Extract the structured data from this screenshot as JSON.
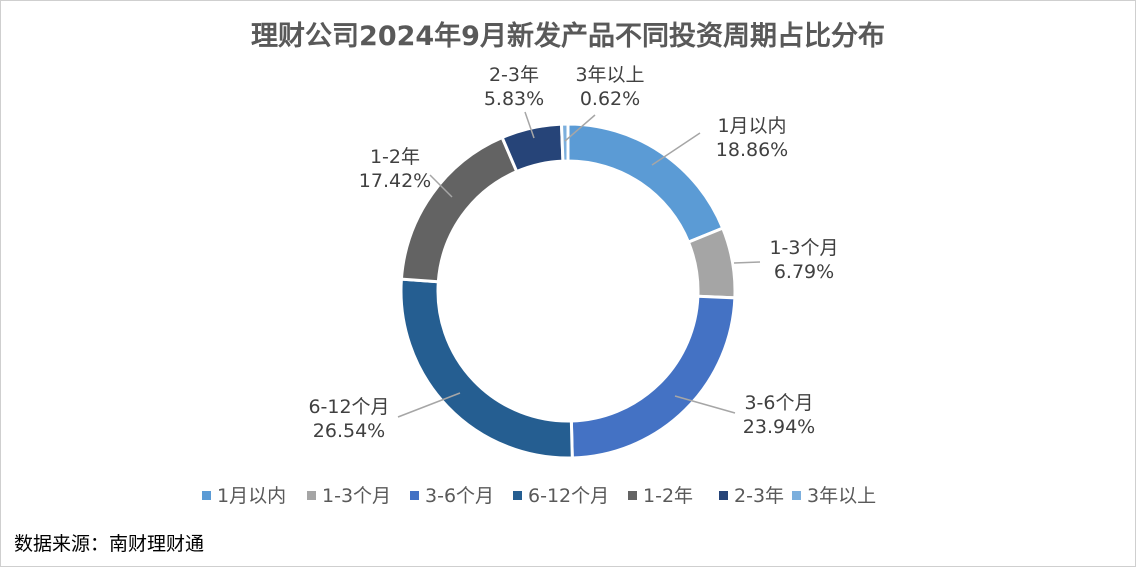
{
  "chart_data": {
    "type": "pie",
    "variant": "donut",
    "title": "理财公司2024年9月新发产品不同投资周期占比分布",
    "categories": [
      "1月以内",
      "1-3个月",
      "3-6个月",
      "6-12个月",
      "1-2年",
      "2-3年",
      "3年以上"
    ],
    "values": [
      18.86,
      6.79,
      23.94,
      26.54,
      17.42,
      5.83,
      0.62
    ],
    "value_labels": [
      "18.86%",
      "6.79%",
      "23.94%",
      "26.54%",
      "17.42%",
      "5.83%",
      "0.62%"
    ],
    "colors": [
      "#5B9BD5",
      "#A5A5A5",
      "#4472C4",
      "#255E91",
      "#636363",
      "#264478",
      "#7CAFDD"
    ],
    "legend_position": "bottom"
  },
  "source": "数据来源：南财理财通"
}
